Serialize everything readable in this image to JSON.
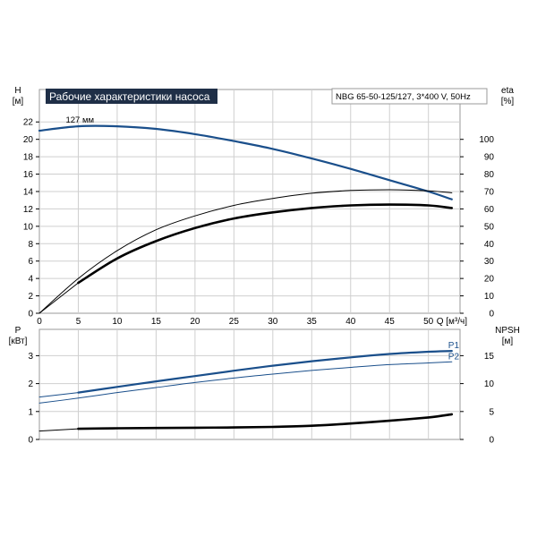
{
  "title": "Рабочие характеристики насоса",
  "model": "NBG 65-50-125/127, 3*400 V, 50Hz",
  "colors": {
    "blue": "#1a4f8b",
    "black": "#000000",
    "title_bg": "#1f2f47",
    "grid": "#cfcfcf"
  },
  "chart_data": [
    {
      "type": "line",
      "title": "Рабочие характеристики насоса",
      "xlabel": "Q [м³/ч]",
      "ylabel_left": "H\n[м]",
      "ylabel_right": "eta\n[%]",
      "xlim": [
        0,
        55
      ],
      "ylim_left": [
        0,
        23
      ],
      "ylim_right": [
        0,
        115
      ],
      "xticks": [
        0,
        5,
        10,
        15,
        20,
        25,
        30,
        35,
        40,
        45,
        50
      ],
      "yticks_left": [
        0,
        2,
        4,
        6,
        8,
        10,
        12,
        14,
        16,
        18,
        20,
        22
      ],
      "yticks_right": [
        0,
        10,
        20,
        30,
        40,
        50,
        60,
        70,
        80,
        90,
        100
      ],
      "grid": true,
      "annotations": [
        {
          "text": "127 мм",
          "x": 5,
          "y": 21.6
        }
      ],
      "series": [
        {
          "name": "",
          "axis": "left",
          "color": "#1a4f8b",
          "width": 2.2,
          "x": [
            0,
            5,
            10,
            15,
            20,
            25,
            30,
            35,
            40,
            45,
            50,
            53
          ],
          "y": [
            21,
            21.5,
            21.5,
            21.2,
            20.6,
            19.8,
            18.9,
            17.8,
            16.6,
            15.3,
            14,
            13.1
          ]
        },
        {
          "name": "",
          "axis": "left",
          "color": "#1a4f8b",
          "width": 1,
          "x": [
            0,
            5
          ],
          "y": [
            21,
            21.5
          ]
        },
        {
          "name": "",
          "axis": "right",
          "color": "#000000",
          "width": 1,
          "x": [
            0,
            5,
            10,
            15,
            20,
            25,
            30,
            35,
            40,
            45,
            50,
            53
          ],
          "y": [
            0,
            20,
            36,
            48,
            56,
            62,
            66,
            69,
            70.6,
            71,
            70.4,
            69.3
          ]
        },
        {
          "name": "",
          "axis": "left",
          "color": "#000000",
          "width": 2.6,
          "x": [
            5,
            10,
            15,
            20,
            25,
            30,
            35,
            40,
            45,
            50,
            53
          ],
          "y": [
            3.5,
            6.3,
            8.3,
            9.8,
            10.9,
            11.6,
            12.1,
            12.4,
            12.5,
            12.4,
            12.1
          ]
        },
        {
          "name": "",
          "axis": "left",
          "color": "#000000",
          "width": 1,
          "x": [
            0,
            5
          ],
          "y": [
            0,
            3.5
          ]
        }
      ]
    },
    {
      "type": "line",
      "xlabel": "",
      "ylabel_left": "P\n[кВт]",
      "ylabel_right": "NPSH\n[м]",
      "xlim": [
        0,
        55
      ],
      "ylim_left": [
        0,
        3.6
      ],
      "ylim_right": [
        0,
        18
      ],
      "yticks_left": [
        0,
        1,
        2,
        3
      ],
      "yticks_right": [
        0,
        5,
        10,
        15
      ],
      "grid": true,
      "series": [
        {
          "name": "P1",
          "axis": "left",
          "color": "#1a4f8b",
          "width": 2.2,
          "x": [
            5,
            10,
            15,
            20,
            25,
            30,
            35,
            40,
            45,
            50,
            53
          ],
          "y": [
            1.68,
            1.88,
            2.08,
            2.27,
            2.46,
            2.64,
            2.8,
            2.94,
            3.06,
            3.14,
            3.17
          ]
        },
        {
          "name": "",
          "axis": "left",
          "color": "#1a4f8b",
          "width": 1,
          "x": [
            0,
            5
          ],
          "y": [
            1.52,
            1.68
          ]
        },
        {
          "name": "P2",
          "axis": "left",
          "color": "#1a4f8b",
          "width": 1,
          "x": [
            0,
            5,
            10,
            15,
            20,
            25,
            30,
            35,
            40,
            45,
            50,
            53
          ],
          "y": [
            1.3,
            1.48,
            1.68,
            1.86,
            2.04,
            2.2,
            2.34,
            2.47,
            2.58,
            2.68,
            2.74,
            2.78
          ]
        },
        {
          "name": "",
          "axis": "right",
          "color": "#000000",
          "width": 2.6,
          "x": [
            5,
            10,
            15,
            20,
            25,
            30,
            35,
            40,
            45,
            50,
            53
          ],
          "y": [
            1.9,
            2.0,
            2.05,
            2.1,
            2.15,
            2.25,
            2.45,
            2.85,
            3.35,
            3.95,
            4.5
          ]
        },
        {
          "name": "",
          "axis": "right",
          "color": "#000000",
          "width": 1,
          "x": [
            0,
            5
          ],
          "y": [
            1.5,
            1.9
          ]
        }
      ]
    }
  ]
}
